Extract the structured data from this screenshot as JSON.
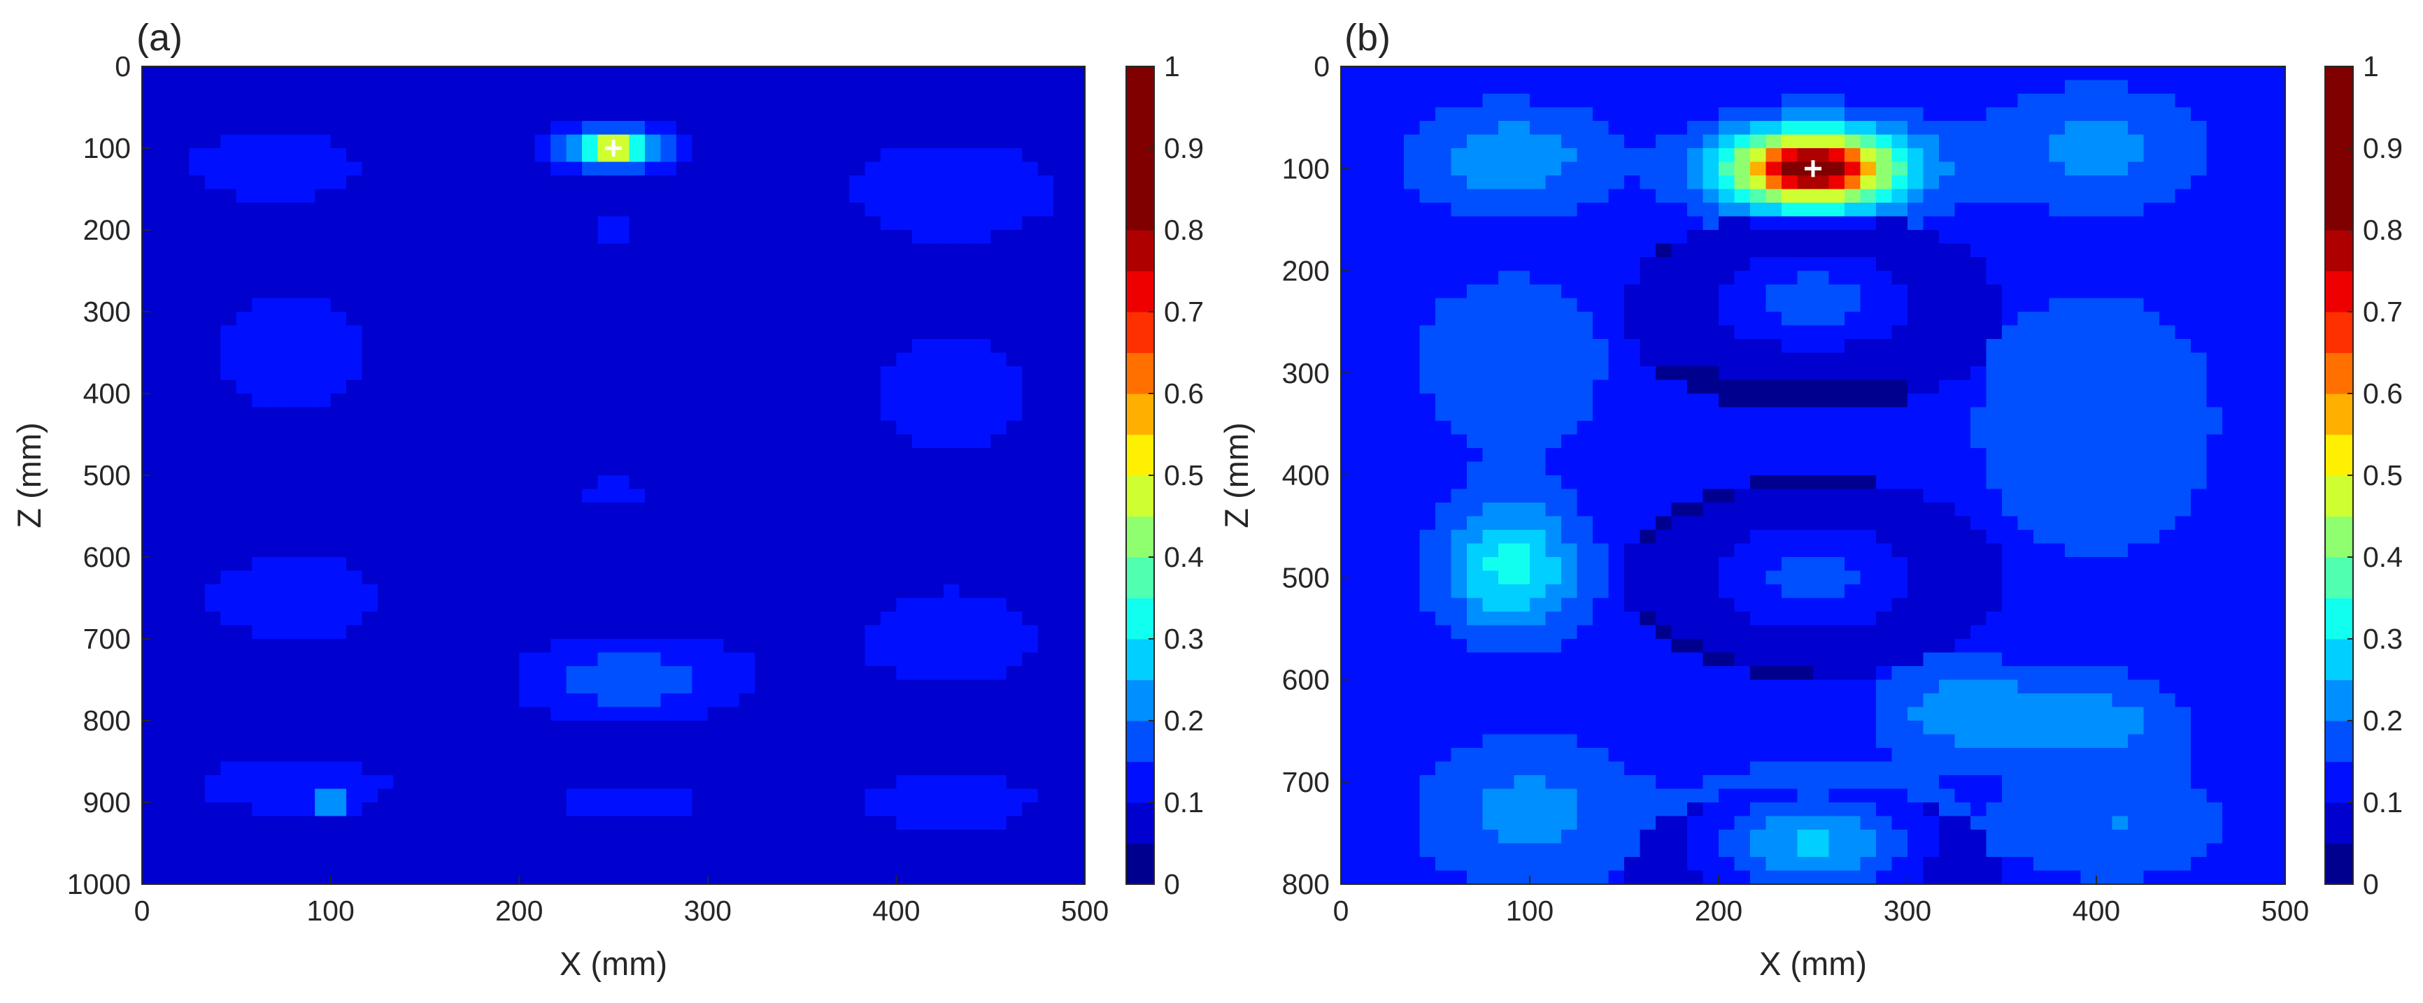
{
  "figure": {
    "panels": [
      "(a)",
      "(b)"
    ]
  },
  "colormap": {
    "name": "jet",
    "levels": 20,
    "colors": [
      "#00008f",
      "#0000cf",
      "#0010ff",
      "#0050ff",
      "#008fff",
      "#00cfff",
      "#10ffef",
      "#50ffaf",
      "#8fff70",
      "#cfff30",
      "#ffef00",
      "#ffaf00",
      "#ff7000",
      "#ff3000",
      "#ef0000",
      "#af0000",
      "#800000",
      "#800000",
      "#800000",
      "#800000"
    ],
    "marker_color": "#ffffff"
  },
  "chart_data": [
    {
      "type": "heatmap",
      "panel": "(a)",
      "xlabel": "X (mm)",
      "ylabel": "Z (mm)",
      "xlim": [
        0,
        500
      ],
      "ylim": [
        0,
        1000
      ],
      "y_reversed": true,
      "xticks": [
        0,
        100,
        200,
        300,
        400,
        500
      ],
      "yticks": [
        0,
        100,
        200,
        300,
        400,
        500,
        600,
        700,
        800,
        900,
        1000
      ],
      "colorbar": {
        "range": [
          0,
          1
        ],
        "ticks": [
          "0",
          "0.1",
          "0.2",
          "0.3",
          "0.4",
          "0.5",
          "0.6",
          "0.7",
          "0.8",
          "0.9",
          "1"
        ]
      },
      "background_value": 0.05,
      "marker": {
        "symbol": "+",
        "x": 250,
        "z": 100
      },
      "blobs": [
        {
          "x": 250,
          "z": 100,
          "sx": 22,
          "sz": 18,
          "v": 0.32
        },
        {
          "x": 250,
          "z": 100,
          "sx": 8,
          "sz": 6,
          "v": 0.45
        },
        {
          "x": 100,
          "z": 900,
          "sx": 5,
          "sz": 5,
          "v": 0.6
        },
        {
          "x": 260,
          "z": 750,
          "sx": 45,
          "sz": 40,
          "v": 0.13
        },
        {
          "x": 70,
          "z": 120,
          "sx": 45,
          "sz": 40,
          "v": 0.08
        },
        {
          "x": 430,
          "z": 150,
          "sx": 55,
          "sz": 60,
          "v": 0.08
        },
        {
          "x": 80,
          "z": 350,
          "sx": 50,
          "sz": 80,
          "v": 0.07
        },
        {
          "x": 430,
          "z": 400,
          "sx": 50,
          "sz": 80,
          "v": 0.07
        },
        {
          "x": 80,
          "z": 650,
          "sx": 55,
          "sz": 60,
          "v": 0.07
        },
        {
          "x": 430,
          "z": 700,
          "sx": 55,
          "sz": 70,
          "v": 0.07
        },
        {
          "x": 80,
          "z": 880,
          "sx": 60,
          "sz": 40,
          "v": 0.07
        },
        {
          "x": 430,
          "z": 900,
          "sx": 50,
          "sz": 40,
          "v": 0.07
        },
        {
          "x": 260,
          "z": 900,
          "sx": 50,
          "sz": 30,
          "v": 0.06
        },
        {
          "x": 250,
          "z": 520,
          "sx": 25,
          "sz": 15,
          "v": 0.07
        },
        {
          "x": 250,
          "z": 200,
          "sx": 20,
          "sz": 15,
          "v": 0.07
        }
      ]
    },
    {
      "type": "heatmap",
      "panel": "(b)",
      "xlabel": "X (mm)",
      "ylabel": "Z (mm)",
      "xlim": [
        0,
        500
      ],
      "ylim": [
        0,
        800
      ],
      "y_reversed": true,
      "xticks": [
        0,
        100,
        200,
        300,
        400,
        500
      ],
      "yticks": [
        0,
        100,
        200,
        300,
        400,
        500,
        600,
        700,
        800
      ],
      "colorbar": {
        "range": [
          0,
          1
        ],
        "ticks": [
          "0",
          "0.1",
          "0.2",
          "0.3",
          "0.4",
          "0.5",
          "0.6",
          "0.7",
          "0.8",
          "0.9",
          "1"
        ]
      },
      "background_value": 0.12,
      "marker": {
        "symbol": "+",
        "x": 250,
        "z": 100
      },
      "blobs": [
        {
          "x": 250,
          "z": 100,
          "sx": 35,
          "sz": 28,
          "v": 0.55
        },
        {
          "x": 250,
          "z": 100,
          "sx": 15,
          "sz": 12,
          "v": 0.35
        },
        {
          "x": 250,
          "z": 230,
          "sx": 40,
          "sz": 35,
          "v": 0.14
        },
        {
          "x": 250,
          "z": 500,
          "sx": 40,
          "sz": 40,
          "v": 0.13
        },
        {
          "x": 250,
          "z": 760,
          "sx": 40,
          "sz": 40,
          "v": 0.22
        },
        {
          "x": 90,
          "z": 490,
          "sx": 25,
          "sz": 45,
          "v": 0.2
        },
        {
          "x": 90,
          "z": 90,
          "sx": 35,
          "sz": 35,
          "v": 0.12
        },
        {
          "x": 90,
          "z": 290,
          "sx": 35,
          "sz": 60,
          "v": 0.08
        },
        {
          "x": 100,
          "z": 730,
          "sx": 40,
          "sz": 50,
          "v": 0.1
        },
        {
          "x": 400,
          "z": 80,
          "sx": 40,
          "sz": 40,
          "v": 0.1
        },
        {
          "x": 400,
          "z": 350,
          "sx": 45,
          "sz": 90,
          "v": 0.08
        },
        {
          "x": 330,
          "z": 630,
          "sx": 30,
          "sz": 30,
          "v": 0.12
        },
        {
          "x": 400,
          "z": 640,
          "sx": 30,
          "sz": 30,
          "v": 0.1
        },
        {
          "x": 410,
          "z": 740,
          "sx": 40,
          "sz": 40,
          "v": 0.08
        }
      ],
      "rings": [
        {
          "x": 250,
          "z": 240,
          "rx": 100,
          "rz": 100
        },
        {
          "x": 250,
          "z": 500,
          "rx": 100,
          "rz": 100
        },
        {
          "x": 250,
          "z": 800,
          "rx": 100,
          "rz": 100
        }
      ]
    }
  ]
}
